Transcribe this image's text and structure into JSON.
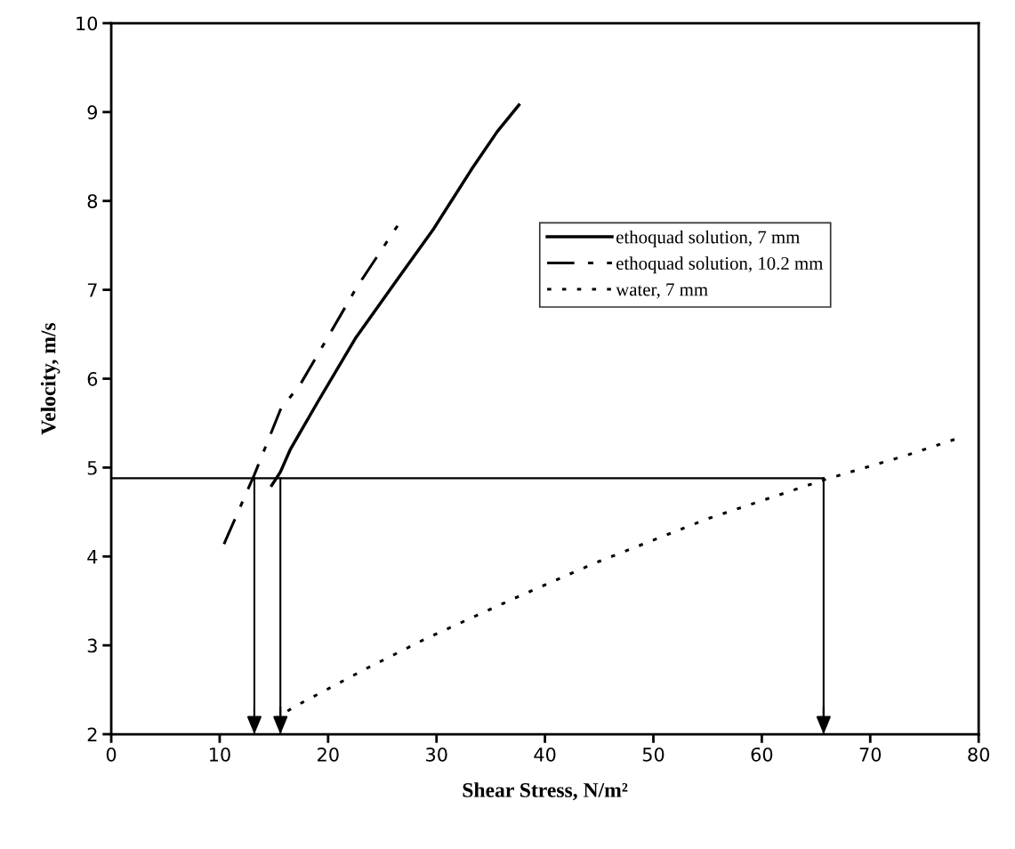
{
  "chart_data": {
    "type": "line",
    "xlabel": "Shear Stress, N/m²",
    "ylabel": "Velocity, m/s",
    "xlim": [
      0,
      80
    ],
    "xticks": [
      0,
      10,
      20,
      30,
      40,
      50,
      60,
      70,
      80
    ],
    "ylim": [
      2,
      10
    ],
    "yticks": [
      2,
      3,
      4,
      5,
      6,
      7,
      8,
      9,
      10
    ],
    "grid": false,
    "legend": "right",
    "marker": "none",
    "series": [
      {
        "name": "ethoquad solution, 7 mm",
        "color": "#000000",
        "line_style": "solid",
        "x": [
          14.8,
          15.6,
          16.5,
          19.1,
          22.5,
          26.4,
          29.7,
          33.2,
          35.6,
          37.6
        ],
        "values": [
          4.8,
          4.95,
          5.2,
          5.75,
          6.45,
          7.12,
          7.68,
          8.35,
          8.78,
          9.08
        ]
      },
      {
        "name": "ethoquad solution, 10.2 mm",
        "color": "#000000",
        "line_style": "dashdot",
        "x": [
          10.4,
          13.2,
          15.6,
          17.5,
          19.9,
          22.6,
          26.4
        ],
        "values": [
          4.14,
          4.92,
          5.65,
          5.95,
          6.45,
          7.02,
          7.72
        ]
      },
      {
        "name": "water, 7 mm",
        "color": "#000000",
        "line_style": "dotted",
        "x": [
          15.1,
          16.9,
          23.7,
          29.1,
          37.2,
          44.5,
          54.9,
          65.7,
          73.4,
          78.1
        ],
        "values": [
          2.17,
          2.31,
          2.75,
          3.08,
          3.53,
          3.92,
          4.42,
          4.86,
          5.14,
          5.33
        ]
      }
    ],
    "ref_lines": [
      {
        "axis": "y",
        "value": 4.88
      },
      {
        "axis": "x",
        "value": 13.2
      },
      {
        "axis": "x",
        "value": 15.6
      },
      {
        "axis": "x",
        "value": 65.7
      }
    ]
  }
}
